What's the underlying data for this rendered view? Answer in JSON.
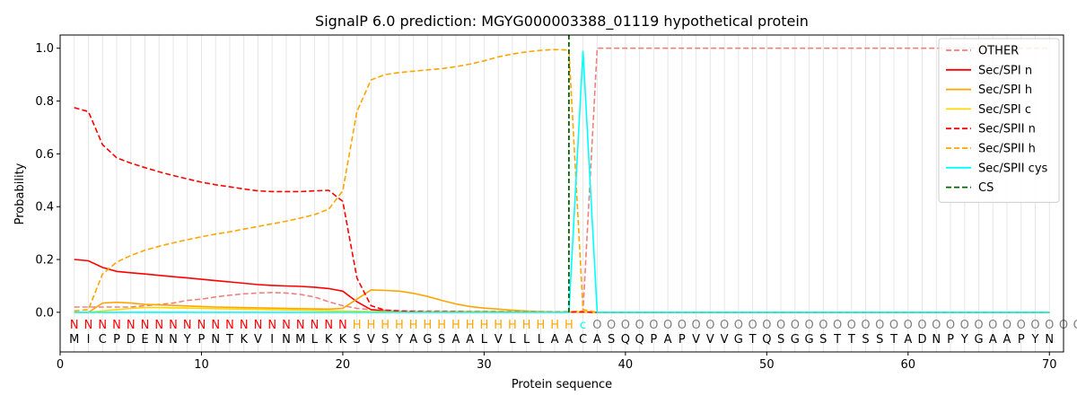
{
  "chart_data": {
    "type": "line",
    "title": "SignalP 6.0 prediction: MGYG000003388_01119 hypothetical protein",
    "xlabel": "Protein sequence",
    "ylabel": "Probability",
    "xlim": [
      0,
      71
    ],
    "ylim": [
      -0.15,
      1.05
    ],
    "xticks": [
      0,
      10,
      20,
      30,
      40,
      50,
      60,
      70
    ],
    "yticks": [
      "0.0",
      "0.2",
      "0.4",
      "0.6",
      "0.8",
      "1.0"
    ],
    "ytick_values": [
      0.0,
      0.2,
      0.4,
      0.6,
      0.8,
      1.0
    ],
    "legend_position": "top-right",
    "vertical_gridlines": true,
    "cleavage_site": 36,
    "sequence": [
      "M",
      "I",
      "C",
      "P",
      "D",
      "E",
      "N",
      "N",
      "Y",
      "P",
      "N",
      "T",
      "K",
      "V",
      "I",
      "N",
      "M",
      "L",
      "K",
      "K",
      "S",
      "V",
      "S",
      "Y",
      "A",
      "G",
      "S",
      "A",
      "A",
      "L",
      "V",
      "L",
      "L",
      "L",
      "A",
      "A",
      "C",
      "A",
      "S",
      "Q",
      "Q",
      "P",
      "A",
      "P",
      "V",
      "V",
      "V",
      "G",
      "T",
      "Q",
      "S",
      "G",
      "G",
      "S",
      "T",
      "T",
      "S",
      "S",
      "T",
      "A",
      "D",
      "N",
      "P",
      "Y",
      "G",
      "A",
      "A",
      "P",
      "Y",
      "N"
    ],
    "annotation": [
      "N",
      "N",
      "N",
      "N",
      "N",
      "N",
      "N",
      "N",
      "N",
      "N",
      "N",
      "N",
      "N",
      "N",
      "N",
      "N",
      "N",
      "N",
      "N",
      "N",
      "H",
      "H",
      "H",
      "H",
      "H",
      "H",
      "H",
      "H",
      "H",
      "H",
      "H",
      "H",
      "H",
      "H",
      "H",
      "H",
      "c",
      "O",
      "O",
      "O",
      "O",
      "O",
      "O",
      "O",
      "O",
      "O",
      "O",
      "O",
      "O",
      "O",
      "O",
      "O",
      "O",
      "O",
      "O",
      "O",
      "O",
      "O",
      "O",
      "O",
      "O",
      "O",
      "O",
      "O",
      "O",
      "O",
      "O",
      "O",
      "O",
      "O",
      "O",
      "O"
    ],
    "annotation_colors": {
      "N": "#ff0000",
      "H": "#ffa500",
      "c": "#00ffff",
      "O": "#808080"
    },
    "series": [
      {
        "name": "OTHER",
        "color": "#f08080",
        "dash": true,
        "values": [
          0.02,
          0.02,
          0.02,
          0.02,
          0.02,
          0.025,
          0.03,
          0.035,
          0.045,
          0.05,
          0.058,
          0.065,
          0.07,
          0.073,
          0.075,
          0.073,
          0.068,
          0.058,
          0.04,
          0.025,
          0.015,
          0.01,
          0.008,
          0.006,
          0.005,
          0.005,
          0.005,
          0.004,
          0.004,
          0.004,
          0.003,
          0.003,
          0.003,
          0.002,
          0.002,
          0.002,
          0.005,
          1.0,
          1.0,
          1.0,
          1.0,
          1.0,
          1.0,
          1.0,
          1.0,
          1.0,
          1.0,
          1.0,
          1.0,
          1.0,
          1.0,
          1.0,
          1.0,
          1.0,
          1.0,
          1.0,
          1.0,
          1.0,
          1.0,
          1.0,
          1.0,
          1.0,
          1.0,
          1.0,
          1.0,
          1.0,
          1.0,
          1.0,
          1.0,
          1.0
        ]
      },
      {
        "name": "Sec/SPI n",
        "color": "#ff0000",
        "dash": false,
        "values": [
          0.2,
          0.195,
          0.17,
          0.155,
          0.15,
          0.145,
          0.14,
          0.135,
          0.13,
          0.125,
          0.12,
          0.115,
          0.11,
          0.105,
          0.102,
          0.1,
          0.098,
          0.095,
          0.09,
          0.08,
          0.04,
          0.01,
          0.005,
          0.003,
          0.002,
          0.002,
          0.002,
          0.001,
          0.001,
          0.001,
          0.001,
          0.001,
          0.001,
          0.001,
          0.001,
          0.001,
          0.001,
          0.0,
          0.0,
          0.0,
          0.0,
          0.0,
          0.0,
          0.0,
          0.0,
          0.0,
          0.0,
          0.0,
          0.0,
          0.0,
          0.0,
          0.0,
          0.0,
          0.0,
          0.0,
          0.0,
          0.0,
          0.0,
          0.0,
          0.0,
          0.0,
          0.0,
          0.0,
          0.0,
          0.0,
          0.0,
          0.0,
          0.0,
          0.0,
          0.0
        ]
      },
      {
        "name": "Sec/SPI h",
        "color": "#ffa500",
        "dash": false,
        "values": [
          0.0,
          0.0,
          0.035,
          0.038,
          0.035,
          0.03,
          0.028,
          0.026,
          0.024,
          0.022,
          0.02,
          0.019,
          0.018,
          0.017,
          0.016,
          0.015,
          0.014,
          0.013,
          0.012,
          0.015,
          0.05,
          0.085,
          0.083,
          0.08,
          0.072,
          0.06,
          0.045,
          0.032,
          0.022,
          0.016,
          0.012,
          0.008,
          0.005,
          0.003,
          0.002,
          0.001,
          0.001,
          0.0,
          0.0,
          0.0,
          0.0,
          0.0,
          0.0,
          0.0,
          0.0,
          0.0,
          0.0,
          0.0,
          0.0,
          0.0,
          0.0,
          0.0,
          0.0,
          0.0,
          0.0,
          0.0,
          0.0,
          0.0,
          0.0,
          0.0,
          0.0,
          0.0,
          0.0,
          0.0,
          0.0,
          0.0,
          0.0,
          0.0,
          0.0,
          0.0
        ]
      },
      {
        "name": "Sec/SPI c",
        "color": "#ffd700",
        "dash": false,
        "values": [
          0.0,
          0.0,
          0.005,
          0.01,
          0.015,
          0.018,
          0.018,
          0.017,
          0.016,
          0.015,
          0.014,
          0.013,
          0.012,
          0.011,
          0.01,
          0.009,
          0.008,
          0.007,
          0.006,
          0.005,
          0.004,
          0.003,
          0.003,
          0.003,
          0.003,
          0.003,
          0.003,
          0.003,
          0.003,
          0.003,
          0.003,
          0.003,
          0.002,
          0.002,
          0.002,
          0.002,
          0.002,
          0.0,
          0.0,
          0.0,
          0.0,
          0.0,
          0.0,
          0.0,
          0.0,
          0.0,
          0.0,
          0.0,
          0.0,
          0.0,
          0.0,
          0.0,
          0.0,
          0.0,
          0.0,
          0.0,
          0.0,
          0.0,
          0.0,
          0.0,
          0.0,
          0.0,
          0.0,
          0.0,
          0.0,
          0.0,
          0.0,
          0.0,
          0.0,
          0.0
        ]
      },
      {
        "name": "Sec/SPII n",
        "color": "#ff0000",
        "dash": true,
        "values": [
          0.775,
          0.76,
          0.635,
          0.585,
          0.565,
          0.548,
          0.532,
          0.518,
          0.505,
          0.493,
          0.483,
          0.475,
          0.467,
          0.46,
          0.457,
          0.457,
          0.457,
          0.46,
          0.462,
          0.42,
          0.13,
          0.025,
          0.008,
          0.005,
          0.003,
          0.002,
          0.002,
          0.002,
          0.001,
          0.001,
          0.001,
          0.001,
          0.001,
          0.001,
          0.001,
          0.001,
          0.001,
          0.0,
          0.0,
          0.0,
          0.0,
          0.0,
          0.0,
          0.0,
          0.0,
          0.0,
          0.0,
          0.0,
          0.0,
          0.0,
          0.0,
          0.0,
          0.0,
          0.0,
          0.0,
          0.0,
          0.0,
          0.0,
          0.0,
          0.0,
          0.0,
          0.0,
          0.0,
          0.0,
          0.0,
          0.0,
          0.0,
          0.0,
          0.0,
          0.0
        ]
      },
      {
        "name": "Sec/SPII h",
        "color": "#ffa500",
        "dash": true,
        "values": [
          0.005,
          0.01,
          0.145,
          0.19,
          0.215,
          0.235,
          0.25,
          0.263,
          0.275,
          0.286,
          0.296,
          0.305,
          0.315,
          0.325,
          0.335,
          0.345,
          0.357,
          0.37,
          0.39,
          0.46,
          0.76,
          0.88,
          0.9,
          0.908,
          0.913,
          0.918,
          0.923,
          0.93,
          0.94,
          0.952,
          0.967,
          0.978,
          0.986,
          0.992,
          0.995,
          0.993,
          0.01,
          0.0,
          0.0,
          0.0,
          0.0,
          0.0,
          0.0,
          0.0,
          0.0,
          0.0,
          0.0,
          0.0,
          0.0,
          0.0,
          0.0,
          0.0,
          0.0,
          0.0,
          0.0,
          0.0,
          0.0,
          0.0,
          0.0,
          0.0,
          0.0,
          0.0,
          0.0,
          0.0,
          0.0,
          0.0,
          0.0,
          0.0,
          0.0,
          0.0
        ]
      },
      {
        "name": "Sec/SPII cys",
        "color": "#00ffff",
        "dash": false,
        "values": [
          0.0,
          0.0,
          0.0,
          0.0,
          0.0,
          0.0,
          0.0,
          0.0,
          0.0,
          0.0,
          0.0,
          0.0,
          0.0,
          0.0,
          0.0,
          0.0,
          0.0,
          0.0,
          0.0,
          0.0,
          0.0,
          0.0,
          0.0,
          0.0,
          0.0,
          0.0,
          0.0,
          0.0,
          0.0,
          0.0,
          0.0,
          0.0,
          0.0,
          0.0,
          0.0,
          0.0,
          0.99,
          0.0,
          0.0,
          0.0,
          0.0,
          0.0,
          0.0,
          0.0,
          0.0,
          0.0,
          0.0,
          0.0,
          0.0,
          0.0,
          0.0,
          0.0,
          0.0,
          0.0,
          0.0,
          0.0,
          0.0,
          0.0,
          0.0,
          0.0,
          0.0,
          0.0,
          0.0,
          0.0,
          0.0,
          0.0,
          0.0,
          0.0,
          0.0,
          0.0
        ]
      },
      {
        "name": "CS",
        "color": "#006400",
        "dash": true,
        "vertical": true,
        "values": []
      }
    ]
  }
}
